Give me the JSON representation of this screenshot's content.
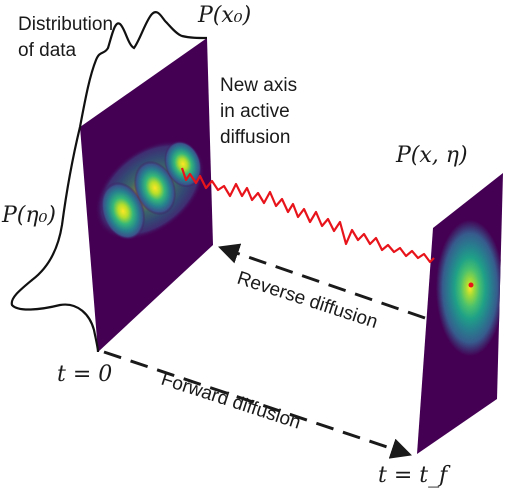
{
  "labels": {
    "distribution_line1": "Distribution",
    "distribution_line2": "of data",
    "p_x0": "P(x₀)",
    "p_eta0": "P(η₀)",
    "p_x_eta": "P(x, η)",
    "new_axis_line1": "New axis",
    "new_axis_line2": "in active",
    "new_axis_line3": "diffusion",
    "reverse_diffusion": "Reverse diffusion",
    "forward_diffusion": "Forward diffusion",
    "t_zero": "t = 0",
    "t_final": "t = t_f"
  },
  "colors": {
    "viridis_dark": "#440154",
    "viridis_mid": "#21918c",
    "viridis_bright": "#fde725",
    "trajectory": "#e8141b",
    "arrow": "#1a1a1a"
  }
}
